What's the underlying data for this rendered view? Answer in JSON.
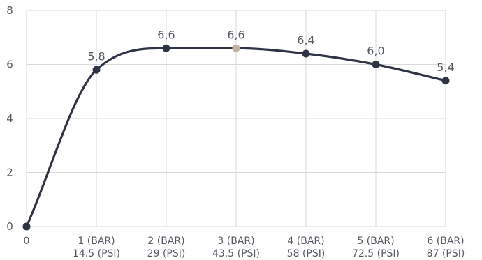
{
  "chart_data": {
    "type": "line",
    "title": "",
    "xlabel": "",
    "ylabel": "",
    "ylim": [
      0,
      8
    ],
    "y_ticks": [
      "0",
      "2",
      "4",
      "6",
      "8"
    ],
    "grid": "vertical-and-horizontal",
    "legend": "none",
    "x": [
      0,
      1,
      2,
      3,
      4,
      5,
      6
    ],
    "tick_labels": [
      {
        "line1": "0",
        "line2": ""
      },
      {
        "line1": "1 (BAR)",
        "line2": "14.5 (PSI)"
      },
      {
        "line1": "2 (BAR)",
        "line2": "29 (PSI)"
      },
      {
        "line1": "3 (BAR)",
        "line2": "43.5 (PSI)"
      },
      {
        "line1": "4 (BAR)",
        "line2": "58 (PSI)"
      },
      {
        "line1": "5 (BAR)",
        "line2": "72.5 (PSI)"
      },
      {
        "line1": "6 (BAR)",
        "line2": "87 (PSI)"
      }
    ],
    "series": [
      {
        "values": [
          0,
          5.8,
          6.6,
          6.6,
          6.4,
          6.0,
          5.4
        ],
        "data_labels": [
          "",
          "5,8",
          "6,6",
          "6,6",
          "6,4",
          "6,0",
          "5,4"
        ],
        "color": "#2f3444",
        "highlight_index": 3,
        "highlight_color": "#c4b0a2"
      }
    ]
  }
}
